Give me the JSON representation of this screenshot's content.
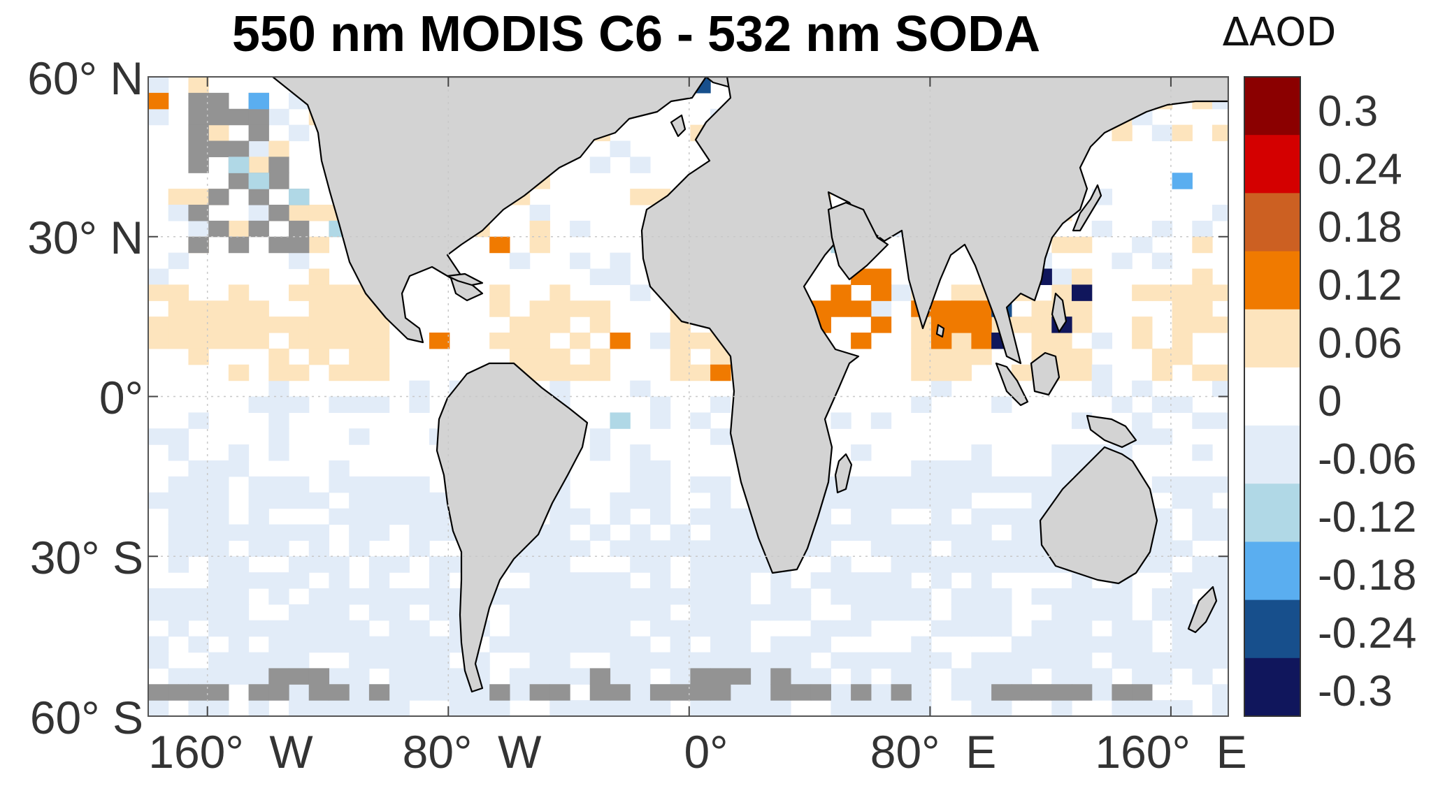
{
  "title": "550 nm MODIS C6 - 532 nm SODA",
  "colorbar": {
    "title": "ΔAOD",
    "bins": [
      {
        "color": "#8b0000"
      },
      {
        "color": "#d40000"
      },
      {
        "color": "#cc6022"
      },
      {
        "color": "#f07a00"
      },
      {
        "color": "#fde4bd"
      },
      {
        "color": "#ffffff"
      },
      {
        "color": "#e2ecf8"
      },
      {
        "color": "#b0d8e6"
      },
      {
        "color": "#5aaef0"
      },
      {
        "color": "#174f8c"
      },
      {
        "color": "#10165c"
      }
    ],
    "tick_labels": [
      "0.3",
      "0.24",
      "0.18",
      "0.12",
      "0.06",
      "0",
      "-0.06",
      "-0.12",
      "-0.18",
      "-0.24",
      "-0.3"
    ]
  },
  "axes": {
    "lat_labels": [
      "60° N",
      "30° N",
      "0°",
      "30° S",
      "60° S"
    ],
    "lon_labels": [
      "160°  W",
      "80°  W",
      "0°",
      "80°  E",
      "160°  E"
    ]
  },
  "colors": {
    "land": "#d3d3d3",
    "coastline": "#000000",
    "no_data": "#939393",
    "grid": "#c8c8c8"
  }
}
